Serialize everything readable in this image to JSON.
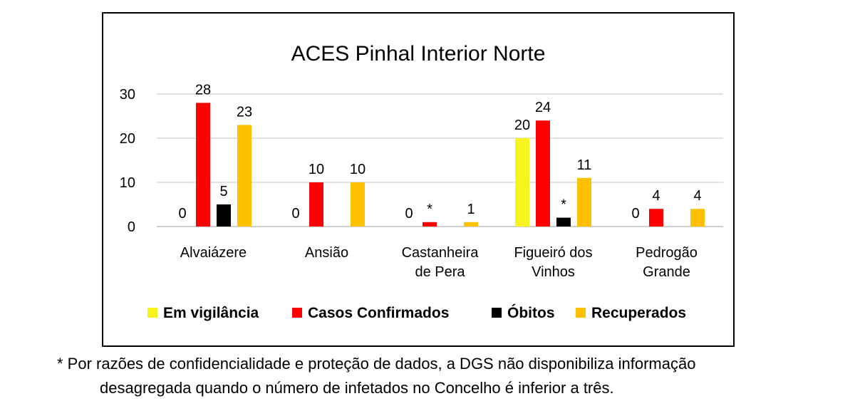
{
  "chart_data": {
    "type": "bar",
    "title": "ACES Pinhal Interior Norte",
    "categories": [
      [
        "Alvaiázere"
      ],
      [
        "Ansião"
      ],
      [
        "Castanheira",
        "de Pera"
      ],
      [
        "Figueiró dos",
        "Vinhos"
      ],
      [
        "Pedrogão",
        "Grande"
      ]
    ],
    "series": [
      {
        "name": "Em vigilância",
        "color": "#f5f51c",
        "values": [
          0,
          0,
          0,
          20,
          0
        ],
        "labels": [
          "0",
          "0",
          "0",
          "20",
          "0"
        ]
      },
      {
        "name": "Casos Confirmados",
        "color": "#ff0000",
        "values": [
          28,
          10,
          1,
          24,
          4
        ],
        "labels": [
          "28",
          "10",
          "*",
          "24",
          "4"
        ]
      },
      {
        "name": "Óbitos",
        "color": "#000000",
        "values": [
          5,
          0,
          0,
          2,
          0
        ],
        "labels": [
          "5",
          "",
          "",
          "*",
          ""
        ]
      },
      {
        "name": "Recuperados",
        "color": "#ffc000",
        "values": [
          23,
          10,
          1,
          11,
          4
        ],
        "labels": [
          "23",
          "10",
          "1",
          "11",
          "4"
        ]
      }
    ],
    "yticks": [
      0,
      10,
      20,
      30
    ],
    "ylim": [
      0,
      30
    ],
    "grid": true,
    "legend_position": "bottom"
  },
  "footnote": {
    "line1": "* Por razões de confidencialidade e proteção de dados, a DGS não disponibiliza informação",
    "line2": "desagregada quando o número de infetados no Concelho é inferior a três."
  }
}
